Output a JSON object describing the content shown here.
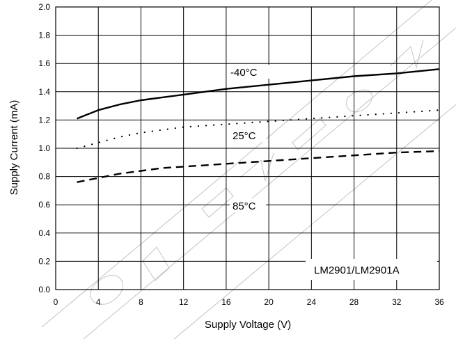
{
  "chart_data": {
    "type": "line",
    "title": "",
    "xlabel": "Supply Voltage (V)",
    "ylabel": "Supply Current (mA)",
    "xlim": [
      0,
      36
    ],
    "ylim": [
      0,
      2.0
    ],
    "x_ticks": [
      "0",
      "4",
      "8",
      "12",
      "16",
      "20",
      "24",
      "28",
      "32",
      "36"
    ],
    "y_ticks": [
      "0.0",
      "0.2",
      "0.4",
      "0.6",
      "0.8",
      "1.0",
      "1.2",
      "1.4",
      "1.6",
      "1.8",
      "2.0"
    ],
    "grid": true,
    "series": [
      {
        "name": "-40°C",
        "style": "solid",
        "x": [
          2,
          3,
          4,
          6,
          8,
          10,
          12,
          14,
          16,
          20,
          24,
          28,
          32,
          36
        ],
        "values": [
          1.21,
          1.24,
          1.27,
          1.31,
          1.34,
          1.36,
          1.38,
          1.4,
          1.42,
          1.45,
          1.48,
          1.51,
          1.53,
          1.56
        ]
      },
      {
        "name": "25°C",
        "style": "dotted",
        "x": [
          2,
          4,
          6,
          8,
          10,
          12,
          14,
          16,
          20,
          24,
          28,
          32,
          36
        ],
        "values": [
          1.0,
          1.04,
          1.08,
          1.11,
          1.13,
          1.15,
          1.16,
          1.17,
          1.19,
          1.21,
          1.23,
          1.25,
          1.27
        ]
      },
      {
        "name": "85°C",
        "style": "dashed",
        "x": [
          2,
          4,
          6,
          8,
          10,
          12,
          14,
          16,
          20,
          24,
          28,
          32,
          36
        ],
        "values": [
          0.76,
          0.79,
          0.82,
          0.84,
          0.86,
          0.87,
          0.88,
          0.89,
          0.91,
          0.93,
          0.95,
          0.97,
          0.98
        ]
      }
    ],
    "annotations": [
      "-40°C",
      "25°C",
      "85°C",
      "LM2901/LM2901A"
    ]
  },
  "watermark": {
    "text": "DEVELOPMENT TO CHANGE"
  }
}
